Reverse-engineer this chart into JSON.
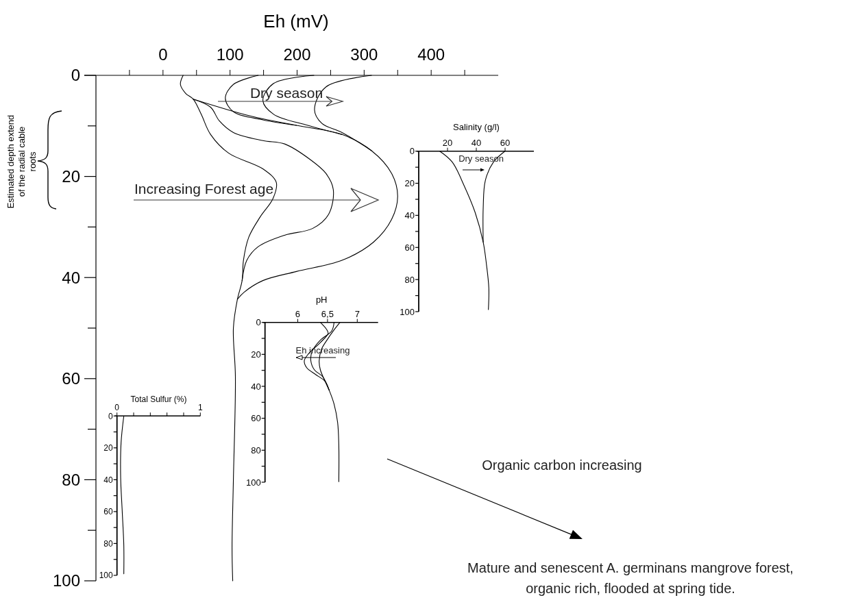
{
  "chart_data": [
    {
      "type": "line",
      "xlabel": "Eh (mV)",
      "xlim": [
        -100,
        500
      ],
      "ylim": [
        100,
        0
      ],
      "xticks": [
        {
          "value": -50,
          "label": null
        },
        0,
        {
          "value": 50,
          "label": null
        },
        100,
        {
          "value": 150,
          "label": null
        },
        200,
        {
          "value": 250,
          "label": null
        },
        300,
        {
          "value": 350,
          "label": null
        },
        400,
        {
          "value": 450,
          "label": null
        }
      ],
      "yticks": [
        0,
        {
          "value": 10,
          "label": null
        },
        20,
        {
          "value": 30,
          "label": null
        },
        40,
        {
          "value": 50,
          "label": null
        },
        60,
        {
          "value": 70,
          "label": null
        },
        80,
        {
          "value": 90,
          "label": null
        },
        100
      ],
      "series": [
        {
          "color": "#000000",
          "x": [
            30,
            26,
            34,
            45,
            57,
            71,
            98,
            149,
            169,
            164,
            145,
            128,
            120,
            118,
            111,
            105,
            108,
            105,
            103,
            104
          ],
          "values": [
            0,
            1.8,
            3.6,
            4.7,
            7.7,
            11.7,
            15.4,
            18.5,
            21.2,
            24.4,
            28,
            32,
            36.6,
            40.6,
            44.3,
            50,
            59.6,
            80,
            93.5,
            100
          ]
        },
        {
          "color": "#000000",
          "x": [
            45,
            71,
            84,
            105,
            149,
            182,
            220,
            243,
            254,
            247,
            223,
            182,
            142,
            125,
            118
          ],
          "values": [
            4.7,
            6.3,
            9,
            11.3,
            12.9,
            13.6,
            16.7,
            19.4,
            22.6,
            27.5,
            30.3,
            31.6,
            33.9,
            36.6,
            40.6
          ]
        },
        {
          "color": "#000000",
          "x": [
            45,
            132,
            199,
            267,
            311,
            341,
            350,
            341,
            314,
            267,
            199,
            149,
            121,
            111
          ],
          "values": [
            4.7,
            8.1,
            9.9,
            11.7,
            14.9,
            19.4,
            23.9,
            28.5,
            33,
            36.6,
            38.8,
            40.6,
            42.9,
            44.3
          ]
        },
        {
          "color": "#000000",
          "x": [
            142,
            105,
            93,
            105,
            149,
            199
          ],
          "values": [
            0,
            1.8,
            4.5,
            7.2,
            8.8,
            9.9
          ]
        },
        {
          "color": "#000000",
          "x": [
            225,
            165,
            149,
            165,
            216,
            267
          ],
          "values": [
            0,
            1.6,
            5,
            7.7,
            9.9,
            11.7
          ]
        },
        {
          "color": "#000000",
          "x": [
            311,
            243,
            226,
            237,
            267,
            311
          ],
          "values": [
            0,
            2.3,
            6.8,
            9.5,
            11.3,
            14.9
          ]
        }
      ],
      "annotations": [
        "Dry season",
        "Increasing Forest age",
        "Estimated depth extend of the radial cable roots",
        "Organic carbon increasing",
        "Mature and senescent A. germinans mangrove forest, organic rich, flooded at spring tide."
      ]
    },
    {
      "type": "line",
      "xlabel": "Salinity (g/l)",
      "xlim": [
        0,
        80
      ],
      "ylim": [
        100,
        0
      ],
      "xticks": [
        20,
        40,
        60
      ],
      "yticks": [
        0,
        {
          "value": 10,
          "label": null
        },
        20,
        {
          "value": 30,
          "label": null
        },
        40,
        {
          "value": 50,
          "label": null
        },
        60,
        {
          "value": 70,
          "label": null
        },
        80,
        {
          "value": 90,
          "label": null
        },
        100
      ],
      "series": [
        {
          "color": "#000000",
          "x": [
            14.6,
            23.3,
            31.3,
            39.2,
            44.8,
            47.1,
            48.7,
            48.4
          ],
          "values": [
            0,
            6.8,
            21,
            38.2,
            56.7,
            70.9,
            85.2,
            98.7
          ]
        },
        {
          "color": "#000000",
          "x": [
            59.9,
            51.9,
            46.3,
            44.8,
            44.8
          ],
          "values": [
            0,
            6.8,
            18.2,
            35.3,
            56.7
          ]
        }
      ],
      "annotations": [
        "Dry season"
      ]
    },
    {
      "type": "line",
      "xlabel": "pH",
      "xlim": [
        5.45,
        7.35
      ],
      "ylim": [
        100,
        0
      ],
      "xticks": [
        6,
        {
          "value": 6.5,
          "label": "6,5"
        },
        7
      ],
      "yticks": [
        0,
        {
          "value": 10,
          "label": null
        },
        20,
        {
          "value": 30,
          "label": null
        },
        40,
        {
          "value": 50,
          "label": null
        },
        60,
        {
          "value": 70,
          "label": null
        },
        80,
        {
          "value": 90,
          "label": null
        },
        100
      ],
      "series": [
        {
          "color": "#000000",
          "x": [
            6.38,
            6.49,
            6.51,
            6.38,
            6.18,
            6.11,
            6.15,
            6.3,
            6.46,
            6.53,
            6.61,
            6.67,
            6.69,
            6.69
          ],
          "values": [
            0,
            4.7,
            6.9,
            12.6,
            19.7,
            24,
            28.3,
            32.6,
            36.9,
            42.6,
            51.1,
            62.6,
            76.9,
            99.7
          ]
        },
        {
          "color": "#000000",
          "x": [
            6.61,
            6.57,
            6.38,
            6.24,
            6.22,
            6.28,
            6.42,
            6.53
          ],
          "values": [
            0,
            5.4,
            11.1,
            18.3,
            24,
            29.7,
            34,
            42.6
          ]
        },
        {
          "color": "#000000",
          "x": [
            6.71,
            6.61,
            6.49,
            6.4,
            6.36,
            6.38,
            6.46,
            6.53
          ],
          "values": [
            0,
            4.7,
            11.1,
            16.8,
            24,
            29.7,
            36.9,
            42.6
          ]
        }
      ],
      "annotations": [
        "Eh increasing"
      ]
    },
    {
      "type": "line",
      "xlabel": "Total Sulfur (%)",
      "xlim": [
        0,
        1
      ],
      "ylim": [
        100,
        0
      ],
      "xticks": [
        0,
        {
          "value": 0.2,
          "label": null
        },
        {
          "value": 0.4,
          "label": null
        },
        {
          "value": 0.6,
          "label": null
        },
        {
          "value": 0.8,
          "label": null
        },
        1
      ],
      "yticks": [
        0,
        {
          "value": 10,
          "label": null
        },
        20,
        {
          "value": 30,
          "label": null
        },
        40,
        {
          "value": 50,
          "label": null
        },
        60,
        {
          "value": 70,
          "label": null
        },
        80,
        {
          "value": 90,
          "label": null
        },
        100
      ],
      "series": [
        {
          "color": "#000000",
          "x": [
            0.082,
            0.049,
            0.044,
            0.063,
            0.082,
            0.082
          ],
          "values": [
            0,
            16.9,
            38.4,
            59.9,
            81.4,
            99
          ]
        }
      ]
    }
  ]
}
